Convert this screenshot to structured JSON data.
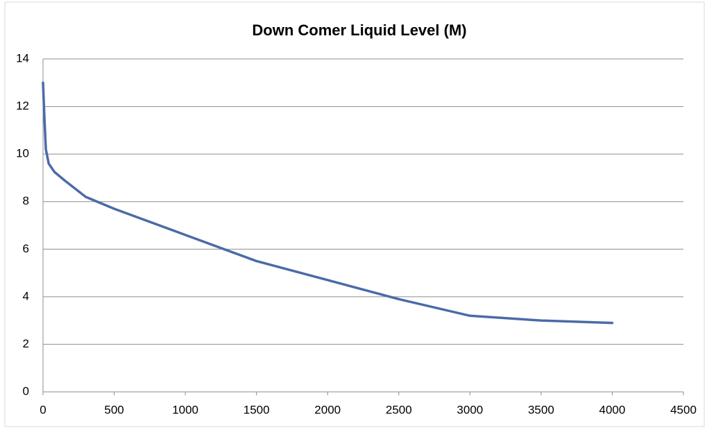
{
  "chart_data": {
    "type": "line",
    "title": "Down Comer Liquid Level (M)",
    "x": [
      0,
      10,
      20,
      40,
      80,
      150,
      300,
      500,
      1000,
      1500,
      2000,
      2500,
      3000,
      3500,
      4000
    ],
    "series": [
      {
        "color": "#4a6ba8",
        "values": [
          13.0,
          11.5,
          10.2,
          9.6,
          9.25,
          8.9,
          8.2,
          7.7,
          6.6,
          5.5,
          4.7,
          3.9,
          3.2,
          3.0,
          2.9
        ]
      }
    ],
    "xlim": [
      0,
      4500
    ],
    "xticks": [
      0,
      500,
      1000,
      1500,
      2000,
      2500,
      3000,
      3500,
      4000,
      4500
    ],
    "ylim": [
      0,
      14
    ],
    "yticks": [
      0,
      2,
      4,
      6,
      8,
      10,
      12,
      14
    ],
    "grid": true
  }
}
